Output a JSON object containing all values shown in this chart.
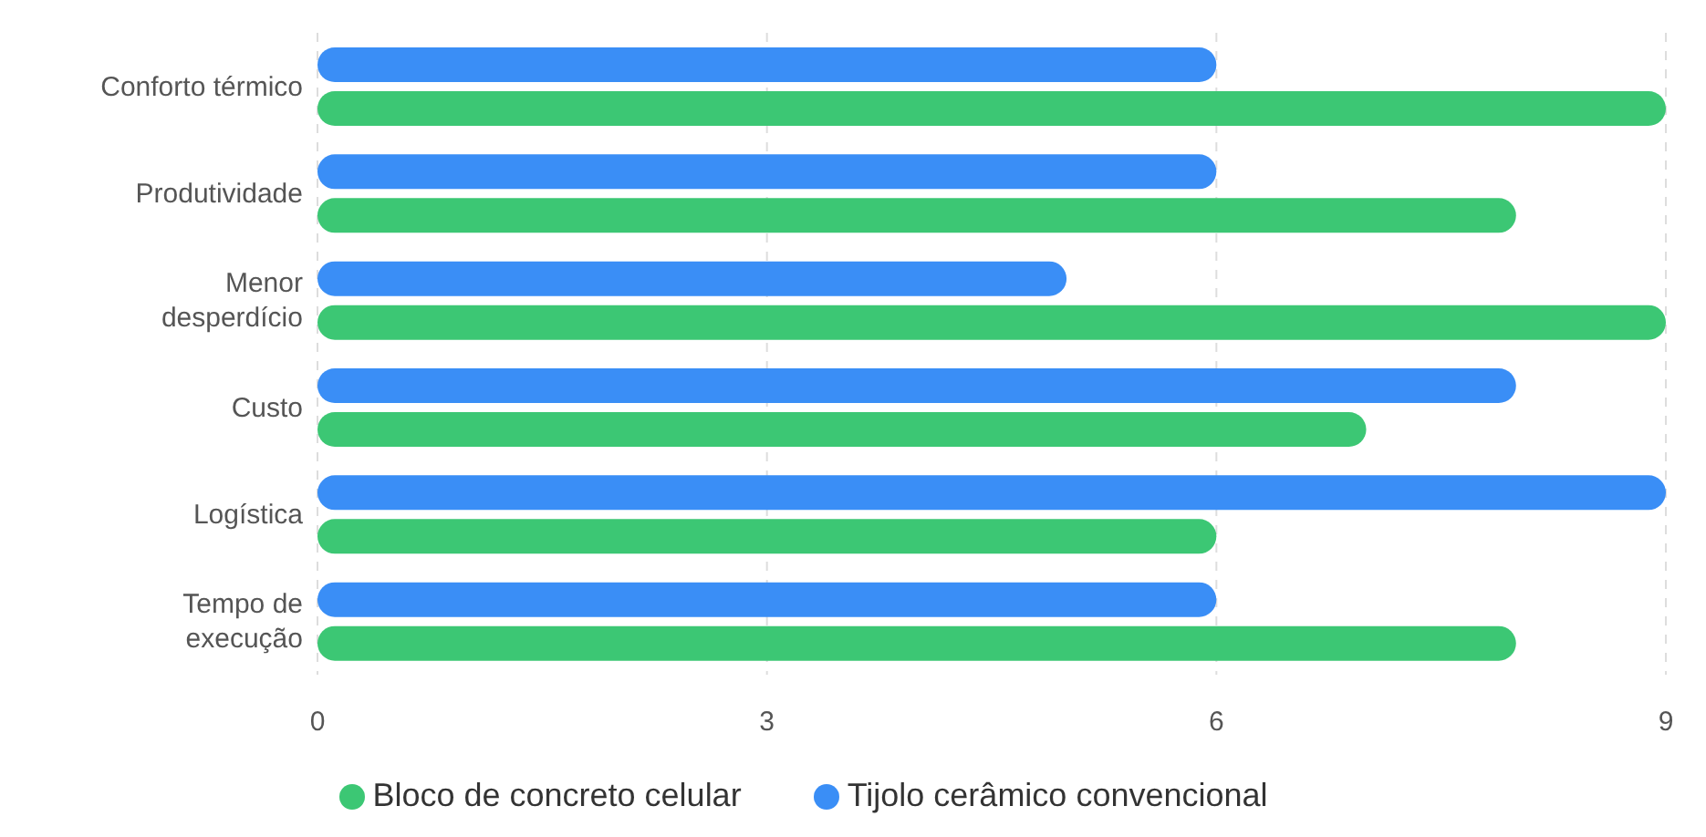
{
  "chart_data": {
    "type": "bar",
    "orientation": "horizontal",
    "categories": [
      "Conforto térmico",
      "Produtividade",
      "Menor desperdício",
      "Custo",
      "Logística",
      "Tempo de execução"
    ],
    "series": [
      {
        "name": "Tijolo cerâmico convencional",
        "color": "#3a8ef6",
        "values": [
          6,
          6,
          5,
          8,
          9,
          6
        ]
      },
      {
        "name": "Bloco de concreto celular",
        "color": "#3cc774",
        "values": [
          9,
          8,
          9,
          7,
          6,
          8
        ]
      }
    ],
    "xlim": [
      0,
      9
    ],
    "xticks": [
      0,
      3,
      6,
      9
    ],
    "grid": "x",
    "legend": "bottom"
  }
}
